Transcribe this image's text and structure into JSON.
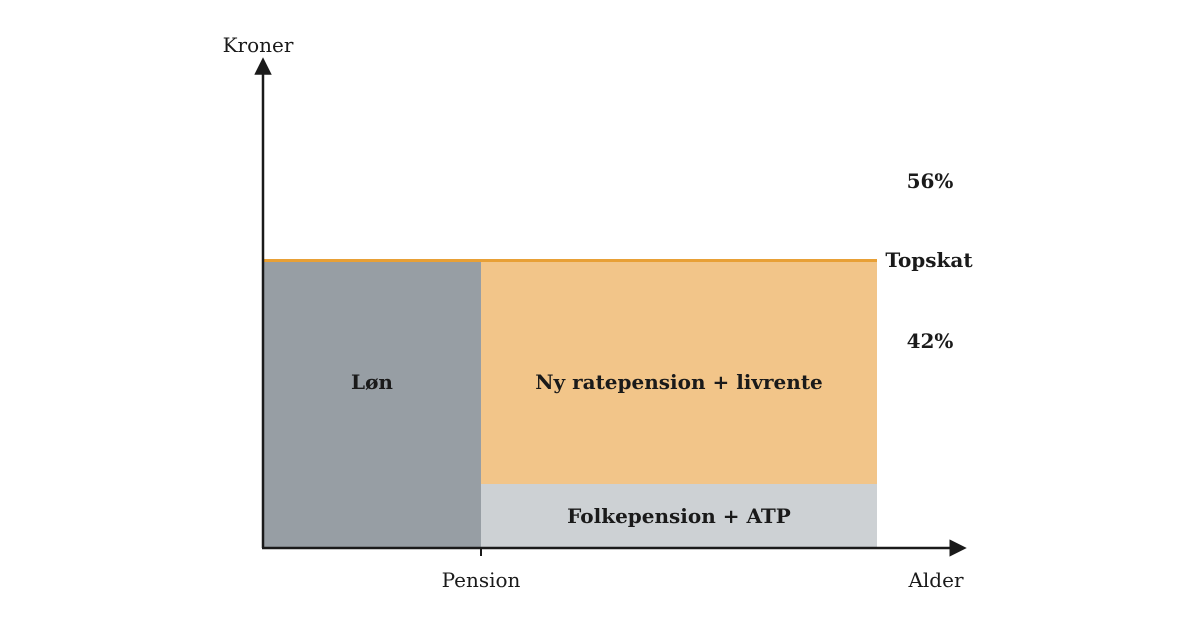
{
  "axes": {
    "y_label": "Kroner",
    "x_label": "Alder",
    "x_tick_label": "Pension"
  },
  "regions": {
    "salary": {
      "label": "Løn",
      "color": "#979ea4"
    },
    "pension": {
      "label": "Ny ratepension + livrente",
      "color": "#f2c589"
    },
    "base": {
      "label": "Folkepension + ATP",
      "color": "#cdd1d4"
    }
  },
  "tax": {
    "topskat_label": "Topskat",
    "rate_above": "56%",
    "rate_below": "42%",
    "line_color": "#e8a036"
  }
}
